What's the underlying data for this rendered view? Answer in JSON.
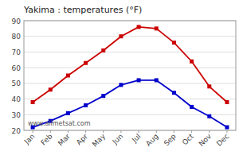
{
  "chart_data": {
    "type": "line",
    "title": "Yakima : temperatures (°F)",
    "categories": [
      "Jan",
      "Feb",
      "Mar",
      "Apr",
      "May",
      "Jun",
      "Jul",
      "Aug",
      "Sep",
      "Oct",
      "Nov",
      "Dec"
    ],
    "series": [
      {
        "color": "#cc0000",
        "marker": "square",
        "values": [
          38,
          46,
          55,
          63,
          71,
          80,
          86,
          85,
          76,
          64,
          48,
          38
        ]
      },
      {
        "color": "#0000cc",
        "marker": "square",
        "values": [
          22,
          26,
          31,
          36,
          42,
          49,
          52,
          52,
          44,
          35,
          29,
          22
        ]
      }
    ],
    "ylim": [
      20,
      90
    ],
    "yticks": [
      20,
      30,
      40,
      50,
      60,
      70,
      80,
      90
    ],
    "grid": true,
    "annotation": "www.allmetsat.com"
  }
}
